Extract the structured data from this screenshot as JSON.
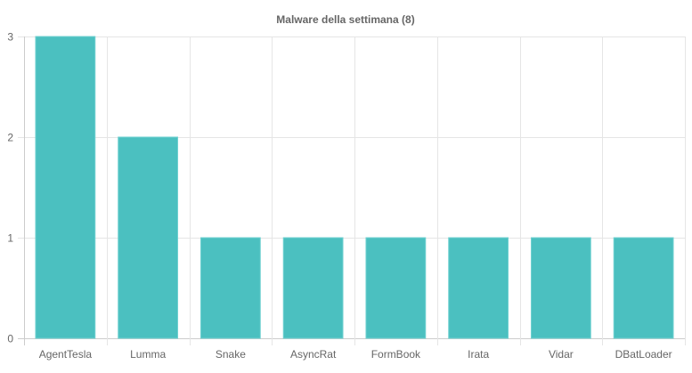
{
  "chart_data": {
    "type": "bar",
    "title": "Malware della settimana (8)",
    "categories": [
      "AgentTesla",
      "Lumma",
      "Snake",
      "AsyncRat",
      "FormBook",
      "Irata",
      "Vidar",
      "DBatLoader"
    ],
    "values": [
      3,
      2,
      1,
      1,
      1,
      1,
      1,
      1
    ],
    "xlabel": "",
    "ylabel": "",
    "ylim": [
      0,
      3
    ],
    "yticks": [
      "0",
      "1",
      "2",
      "3"
    ],
    "grid": true,
    "legend": "none",
    "colors": {
      "bar": "#4bc0c0",
      "bar_border": "#6fd0d0",
      "grid": "#e5e5e5",
      "text": "#666666"
    }
  }
}
